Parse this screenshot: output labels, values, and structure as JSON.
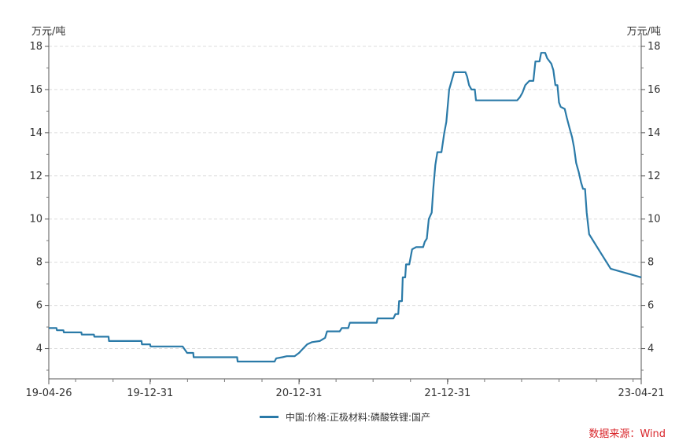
{
  "chart_data": {
    "type": "line",
    "ylabel_left": "万元/吨",
    "ylabel_right": "万元/吨",
    "ylim": [
      2.6,
      18.4
    ],
    "yticks": [
      4,
      6,
      8,
      10,
      12,
      14,
      16,
      18
    ],
    "xlim": [
      "2019-04-26",
      "2023-04-21"
    ],
    "xtick_labels": [
      "19-04-26",
      "19-12-31",
      "20-12-31",
      "21-12-31",
      "23-04-21"
    ],
    "xticks": [
      "2019-04-26",
      "2019-12-31",
      "2020-12-31",
      "2021-12-31",
      "2023-04-21"
    ],
    "grid": true,
    "legend_position": "bottom-center",
    "series": [
      {
        "name": "中国:价格:正极材料:磷酸铁锂:国产",
        "color": "#2a7aa8",
        "points": [
          [
            "2019-04-26",
            4.95
          ],
          [
            "2019-05-15",
            4.95
          ],
          [
            "2019-05-16",
            4.85
          ],
          [
            "2019-06-01",
            4.85
          ],
          [
            "2019-06-02",
            4.75
          ],
          [
            "2019-07-15",
            4.75
          ],
          [
            "2019-07-16",
            4.65
          ],
          [
            "2019-08-15",
            4.65
          ],
          [
            "2019-08-16",
            4.55
          ],
          [
            "2019-09-20",
            4.55
          ],
          [
            "2019-09-21",
            4.35
          ],
          [
            "2019-12-10",
            4.35
          ],
          [
            "2019-12-11",
            4.2
          ],
          [
            "2019-12-31",
            4.2
          ],
          [
            "2020-01-01",
            4.1
          ],
          [
            "2020-03-20",
            4.1
          ],
          [
            "2020-03-31",
            3.8
          ],
          [
            "2020-04-15",
            3.8
          ],
          [
            "2020-04-16",
            3.6
          ],
          [
            "2020-08-01",
            3.6
          ],
          [
            "2020-08-02",
            3.4
          ],
          [
            "2020-11-01",
            3.4
          ],
          [
            "2020-11-05",
            3.55
          ],
          [
            "2020-11-20",
            3.6
          ],
          [
            "2020-12-01",
            3.65
          ],
          [
            "2020-12-20",
            3.65
          ],
          [
            "2020-12-31",
            3.8
          ],
          [
            "2021-01-10",
            4.0
          ],
          [
            "2021-01-20",
            4.2
          ],
          [
            "2021-02-01",
            4.3
          ],
          [
            "2021-02-20",
            4.35
          ],
          [
            "2021-03-05",
            4.5
          ],
          [
            "2021-03-10",
            4.8
          ],
          [
            "2021-04-10",
            4.8
          ],
          [
            "2021-04-15",
            4.95
          ],
          [
            "2021-05-01",
            4.95
          ],
          [
            "2021-05-05",
            5.2
          ],
          [
            "2021-07-10",
            5.2
          ],
          [
            "2021-07-12",
            5.4
          ],
          [
            "2021-08-20",
            5.4
          ],
          [
            "2021-08-25",
            5.6
          ],
          [
            "2021-09-01",
            5.6
          ],
          [
            "2021-09-03",
            6.2
          ],
          [
            "2021-09-10",
            6.2
          ],
          [
            "2021-09-12",
            7.3
          ],
          [
            "2021-09-18",
            7.3
          ],
          [
            "2021-09-20",
            7.9
          ],
          [
            "2021-09-28",
            7.9
          ],
          [
            "2021-10-05",
            8.6
          ],
          [
            "2021-10-15",
            8.7
          ],
          [
            "2021-11-01",
            8.7
          ],
          [
            "2021-11-05",
            8.95
          ],
          [
            "2021-11-10",
            9.1
          ],
          [
            "2021-11-15",
            10.0
          ],
          [
            "2021-11-22",
            10.3
          ],
          [
            "2021-11-26",
            11.4
          ],
          [
            "2021-12-01",
            12.5
          ],
          [
            "2021-12-06",
            13.1
          ],
          [
            "2021-12-16",
            13.1
          ],
          [
            "2021-12-23",
            14.0
          ],
          [
            "2021-12-28",
            14.5
          ],
          [
            "2022-01-04",
            16.0
          ],
          [
            "2022-01-10",
            16.4
          ],
          [
            "2022-01-16",
            16.8
          ],
          [
            "2022-02-13",
            16.8
          ],
          [
            "2022-02-17",
            16.6
          ],
          [
            "2022-02-22",
            16.2
          ],
          [
            "2022-02-28",
            16.0
          ],
          [
            "2022-03-08",
            16.0
          ],
          [
            "2022-03-11",
            15.5
          ],
          [
            "2022-06-20",
            15.5
          ],
          [
            "2022-06-27",
            15.65
          ],
          [
            "2022-07-03",
            15.85
          ],
          [
            "2022-07-10",
            16.2
          ],
          [
            "2022-07-20",
            16.4
          ],
          [
            "2022-07-30",
            16.4
          ],
          [
            "2022-08-04",
            17.3
          ],
          [
            "2022-08-14",
            17.3
          ],
          [
            "2022-08-18",
            17.7
          ],
          [
            "2022-08-28",
            17.7
          ],
          [
            "2022-09-02",
            17.45
          ],
          [
            "2022-09-12",
            17.2
          ],
          [
            "2022-09-17",
            16.9
          ],
          [
            "2022-09-22",
            16.2
          ],
          [
            "2022-09-27",
            16.2
          ],
          [
            "2022-10-01",
            15.4
          ],
          [
            "2022-10-05",
            15.2
          ],
          [
            "2022-10-15",
            15.1
          ],
          [
            "2022-10-20",
            14.7
          ],
          [
            "2022-10-27",
            14.2
          ],
          [
            "2022-11-02",
            13.8
          ],
          [
            "2022-11-07",
            13.3
          ],
          [
            "2022-11-12",
            12.6
          ],
          [
            "2022-11-18",
            12.2
          ],
          [
            "2022-11-24",
            11.7
          ],
          [
            "2022-11-29",
            11.4
          ],
          [
            "2022-12-04",
            11.4
          ],
          [
            "2022-12-08",
            10.3
          ],
          [
            "2022-12-14",
            9.3
          ],
          [
            "2023-01-06",
            8.6
          ],
          [
            "2023-02-05",
            7.7
          ],
          [
            "2023-04-21",
            7.3
          ]
        ]
      }
    ]
  },
  "legend": {
    "label": "中国:价格:正极材料:磷酸铁锂:国产"
  },
  "source": "数据来源：Wind"
}
